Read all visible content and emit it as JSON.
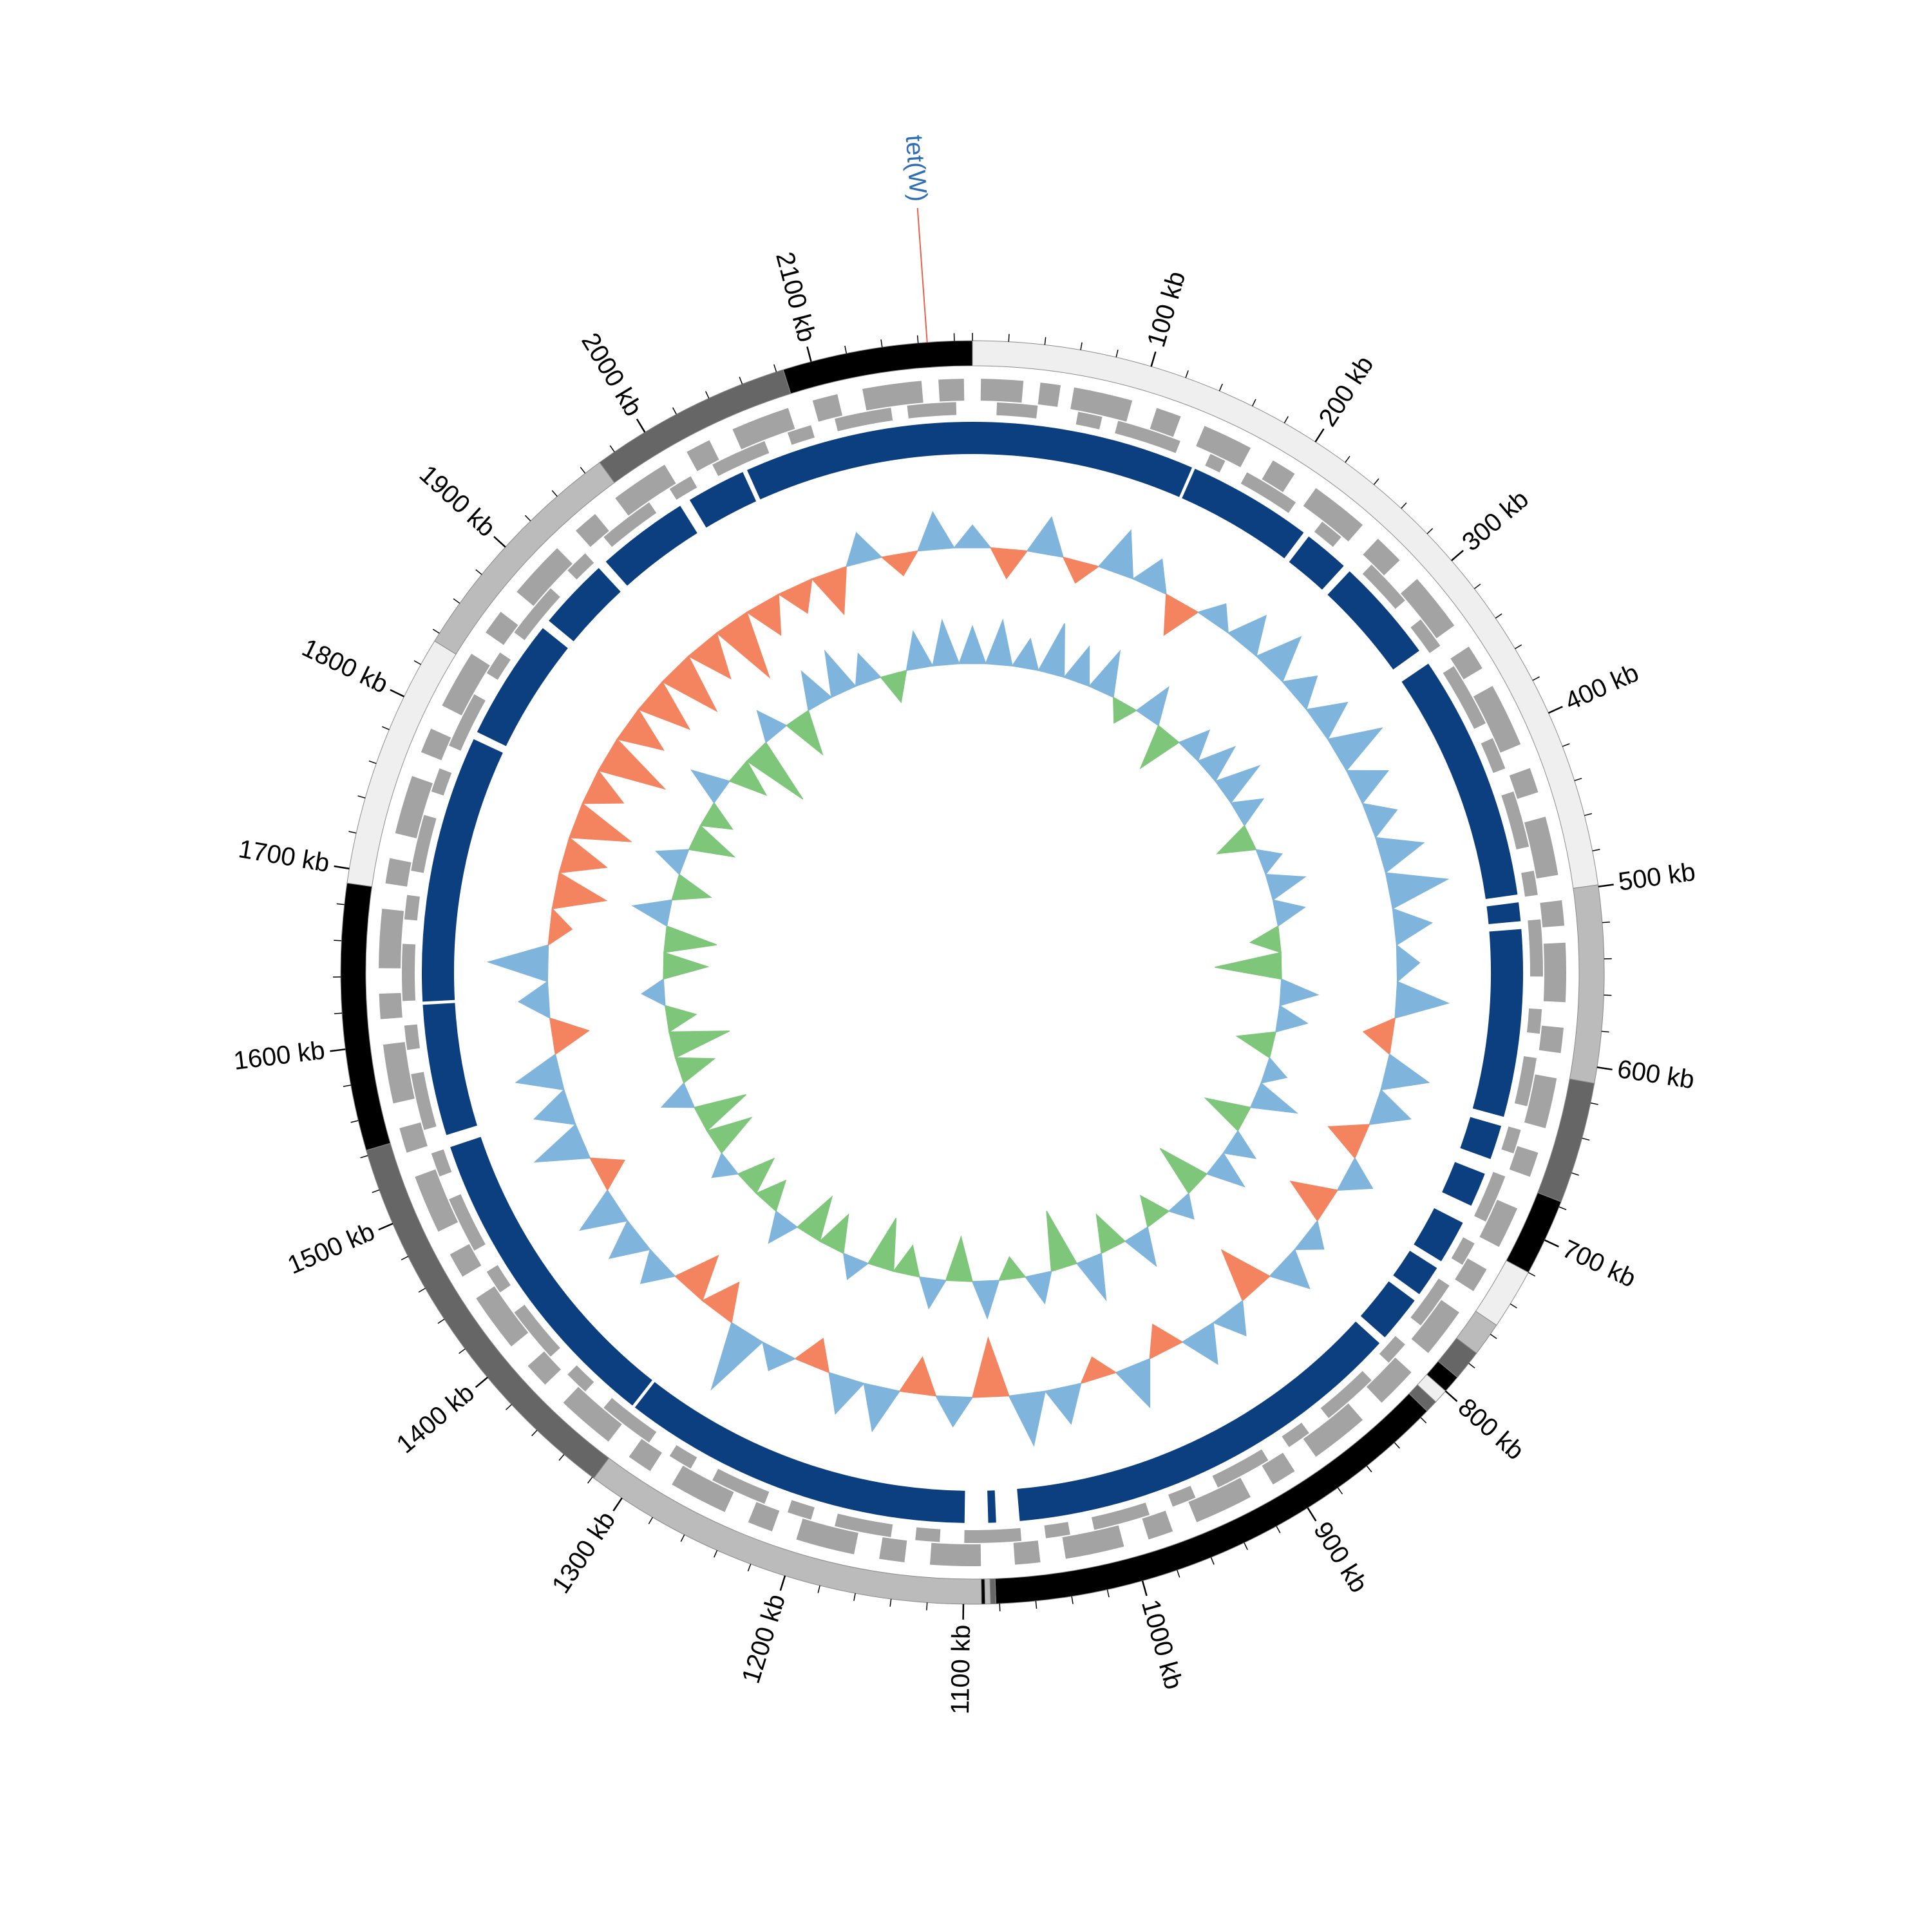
{
  "chart_data": {
    "type": "circular-genome",
    "xlim": [
      0,
      2190
    ],
    "xticks": [
      {
        "value": 100,
        "label": "100 kb"
      },
      {
        "value": 200,
        "label": "200 kb"
      },
      {
        "value": 300,
        "label": "300 kb"
      },
      {
        "value": 400,
        "label": "400 kb"
      },
      {
        "value": 500,
        "label": "500 kb"
      },
      {
        "value": 600,
        "label": "600 kb"
      },
      {
        "value": 700,
        "label": "700 kb"
      },
      {
        "value": 800,
        "label": "800 kb"
      },
      {
        "value": 900,
        "label": "900 kb"
      },
      {
        "value": 1000,
        "label": "1000 kb"
      },
      {
        "value": 1100,
        "label": "1100 kb"
      },
      {
        "value": 1200,
        "label": "1200 kb"
      },
      {
        "value": 1300,
        "label": "1300 kb"
      },
      {
        "value": 1400,
        "label": "1400 kb"
      },
      {
        "value": 1500,
        "label": "1500 kb"
      },
      {
        "value": 1600,
        "label": "1600 kb"
      },
      {
        "value": 1700,
        "label": "1700 kb"
      },
      {
        "value": 1800,
        "label": "1800 kb"
      },
      {
        "value": 1900,
        "label": "1900 kb"
      },
      {
        "value": 2000,
        "label": "2000 kb"
      },
      {
        "value": 2100,
        "label": "2100 kb"
      }
    ],
    "minor_ticks": [
      0,
      20,
      40,
      60,
      80,
      100,
      120,
      140,
      160,
      180,
      200,
      220,
      240,
      260,
      280,
      300,
      320,
      340,
      360,
      380,
      400,
      420,
      440,
      460,
      480,
      500,
      520,
      540,
      560,
      580,
      600,
      620,
      640,
      660,
      680,
      700,
      720,
      740,
      760,
      780,
      800,
      820,
      840,
      860,
      880,
      900,
      920,
      940,
      960,
      980,
      1000,
      1020,
      1040,
      1060,
      1080,
      1100,
      1120,
      1140,
      1160,
      1180,
      1200,
      1220,
      1240,
      1260,
      1280,
      1300,
      1320,
      1340,
      1360,
      1380,
      1400,
      1420,
      1440,
      1460,
      1480,
      1500,
      1520,
      1540,
      1560,
      1580,
      1600,
      1620,
      1640,
      1660,
      1680,
      1700,
      1720,
      1740,
      1760,
      1780,
      1800,
      1820,
      1840,
      1860,
      1880,
      1900,
      1920,
      1940,
      1960,
      1980,
      2000,
      2020,
      2040,
      2060,
      2080,
      2100,
      2120,
      2140,
      2160,
      2180
    ],
    "contigs": [
      {
        "start": 0,
        "end": 499,
        "color": "#efefef"
      },
      {
        "start": 499,
        "end": 609,
        "color": "#bbbbbb"
      },
      {
        "start": 609,
        "end": 677,
        "color": "#666666"
      },
      {
        "start": 677,
        "end": 720,
        "color": "#000000"
      },
      {
        "start": 720,
        "end": 754,
        "color": "#efefef"
      },
      {
        "start": 754,
        "end": 773,
        "color": "#bbbbbb"
      },
      {
        "start": 773,
        "end": 790,
        "color": "#666666"
      },
      {
        "start": 790,
        "end": 800,
        "color": "#000000"
      },
      {
        "start": 800,
        "end": 808,
        "color": "#efefef"
      },
      {
        "start": 808,
        "end": 815,
        "color": "#666666"
      },
      {
        "start": 815,
        "end": 1082,
        "color": "#000000"
      },
      {
        "start": 1082,
        "end": 1085,
        "color": "#666666"
      },
      {
        "start": 1085,
        "end": 1088,
        "color": "#bbbbbb"
      },
      {
        "start": 1088,
        "end": 1090,
        "color": "#000000"
      },
      {
        "start": 1090,
        "end": 1319,
        "color": "#bbbbbb"
      },
      {
        "start": 1319,
        "end": 1543,
        "color": "#666666"
      },
      {
        "start": 1543,
        "end": 1692,
        "color": "#000000"
      },
      {
        "start": 1692,
        "end": 1835,
        "color": "#efefef"
      },
      {
        "start": 1835,
        "end": 1970,
        "color": "#bbbbbb"
      },
      {
        "start": 1970,
        "end": 2084,
        "color": "#666666"
      },
      {
        "start": 2084,
        "end": 2190,
        "color": "#000000"
      }
    ],
    "genes": {
      "color": "#a3a3a3",
      "forward": [
        [
          5,
          30
        ],
        [
          40,
          52
        ],
        [
          60,
          95
        ],
        [
          110,
          125
        ],
        [
          140,
          170
        ],
        [
          185,
          200
        ],
        [
          215,
          250
        ],
        [
          262,
          280
        ],
        [
          295,
          330
        ],
        [
          345,
          360
        ],
        [
          372,
          410
        ],
        [
          425,
          440
        ],
        [
          455,
          490
        ],
        [
          505,
          520
        ],
        [
          530,
          565
        ],
        [
          580,
          595
        ],
        [
          610,
          640
        ],
        [
          655,
          670
        ],
        [
          690,
          715
        ],
        [
          730,
          745
        ],
        [
          760,
          790
        ],
        [
          805,
          830
        ],
        [
          845,
          880
        ],
        [
          895,
          910
        ],
        [
          925,
          960
        ],
        [
          975,
          990
        ],
        [
          1005,
          1040
        ],
        [
          1055,
          1070
        ],
        [
          1090,
          1120
        ],
        [
          1135,
          1150
        ],
        [
          1165,
          1200
        ],
        [
          1215,
          1230
        ],
        [
          1245,
          1280
        ],
        [
          1295,
          1310
        ],
        [
          1325,
          1360
        ],
        [
          1375,
          1390
        ],
        [
          1405,
          1440
        ],
        [
          1455,
          1470
        ],
        [
          1485,
          1520
        ],
        [
          1535,
          1550
        ],
        [
          1565,
          1600
        ],
        [
          1615,
          1630
        ],
        [
          1645,
          1680
        ],
        [
          1695,
          1710
        ],
        [
          1725,
          1760
        ],
        [
          1775,
          1790
        ],
        [
          1805,
          1840
        ],
        [
          1855,
          1870
        ],
        [
          1885,
          1920
        ],
        [
          1935,
          1950
        ],
        [
          1965,
          2000
        ],
        [
          2015,
          2030
        ],
        [
          2045,
          2080
        ],
        [
          2095,
          2110
        ],
        [
          2125,
          2160
        ],
        [
          2170,
          2185
        ]
      ],
      "reverse": [
        [
          15,
          40
        ],
        [
          65,
          80
        ],
        [
          90,
          130
        ],
        [
          150,
          160
        ],
        [
          175,
          210
        ],
        [
          230,
          245
        ],
        [
          270,
          300
        ],
        [
          315,
          335
        ],
        [
          350,
          390
        ],
        [
          400,
          420
        ],
        [
          435,
          470
        ],
        [
          485,
          500
        ],
        [
          515,
          550
        ],
        [
          570,
          585
        ],
        [
          600,
          630
        ],
        [
          645,
          660
        ],
        [
          675,
          705
        ],
        [
          720,
          735
        ],
        [
          750,
          780
        ],
        [
          795,
          810
        ],
        [
          825,
          860
        ],
        [
          875,
          890
        ],
        [
          905,
          940
        ],
        [
          955,
          970
        ],
        [
          985,
          1020
        ],
        [
          1035,
          1050
        ],
        [
          1065,
          1100
        ],
        [
          1115,
          1130
        ],
        [
          1145,
          1180
        ],
        [
          1195,
          1210
        ],
        [
          1225,
          1260
        ],
        [
          1275,
          1290
        ],
        [
          1305,
          1340
        ],
        [
          1355,
          1370
        ],
        [
          1385,
          1420
        ],
        [
          1435,
          1450
        ],
        [
          1465,
          1500
        ],
        [
          1515,
          1530
        ],
        [
          1545,
          1580
        ],
        [
          1595,
          1610
        ],
        [
          1625,
          1660
        ],
        [
          1675,
          1690
        ],
        [
          1705,
          1740
        ],
        [
          1755,
          1770
        ],
        [
          1785,
          1820
        ],
        [
          1835,
          1850
        ],
        [
          1865,
          1900
        ],
        [
          1915,
          1930
        ],
        [
          1945,
          1980
        ],
        [
          1995,
          2010
        ],
        [
          2025,
          2060
        ],
        [
          2075,
          2090
        ],
        [
          2105,
          2140
        ],
        [
          2150,
          2180
        ]
      ]
    },
    "blast": {
      "color": "#0b3f7f",
      "hits": [
        [
          0,
          143
        ],
        [
          145,
          225
        ],
        [
          229,
          258
        ],
        [
          263,
          330
        ],
        [
          340,
          498
        ],
        [
          503,
          515
        ],
        [
          520,
          640
        ],
        [
          646,
          668
        ],
        [
          678,
          700
        ],
        [
          712,
          740
        ],
        [
          745,
          765
        ],
        [
          770,
          800
        ],
        [
          805,
          1065
        ],
        [
          1080,
          1085
        ],
        [
          1100,
          1325
        ],
        [
          1327,
          1530
        ],
        [
          1538,
          1622
        ],
        [
          1624,
          1795
        ],
        [
          1800,
          1878
        ],
        [
          1884,
          1930
        ],
        [
          1936,
          1995
        ],
        [
          2002,
          2040
        ],
        [
          2043,
          2190
        ]
      ]
    },
    "gc_content": {
      "ylim": [
        -1,
        1
      ],
      "positive_color": "#7fb5dc",
      "negative_color": "#f4845f",
      "x": [
        0,
        30,
        60,
        90,
        120,
        150,
        180,
        210,
        240,
        270,
        300,
        330,
        360,
        390,
        420,
        450,
        480,
        510,
        540,
        570,
        600,
        630,
        660,
        690,
        720,
        750,
        780,
        810,
        840,
        870,
        900,
        930,
        960,
        990,
        1020,
        1050,
        1080,
        1110,
        1140,
        1170,
        1200,
        1230,
        1260,
        1290,
        1320,
        1350,
        1380,
        1410,
        1440,
        1470,
        1500,
        1530,
        1560,
        1590,
        1620,
        1650,
        1680,
        1710,
        1740,
        1770,
        1800,
        1830,
        1860,
        1890,
        1920,
        1950,
        1980,
        2010,
        2040,
        2070,
        2100,
        2130,
        2160
      ],
      "values": [
        0.3,
        -0.4,
        0.5,
        -0.3,
        0.6,
        0.4,
        -0.5,
        0.3,
        0.5,
        0.6,
        0.4,
        0.5,
        0.7,
        0.5,
        0.4,
        0.6,
        0.8,
        0.5,
        0.3,
        0.7,
        -0.4,
        0.6,
        0.5,
        -0.5,
        0.4,
        -0.6,
        0.3,
        0.5,
        -0.7,
        0.4,
        0.5,
        -0.4,
        0.6,
        -0.3,
        0.5,
        0.7,
        -0.8,
        0.4,
        -0.5,
        0.6,
        0.5,
        -0.4,
        0.3,
        0.9,
        -0.5,
        -0.6,
        0.4,
        0.5,
        0.6,
        -0.4,
        0.7,
        0.5,
        0.6,
        -0.5,
        0.4,
        0.8,
        -0.3,
        -0.7,
        -0.6,
        -0.8,
        -0.5,
        -0.9,
        -0.6,
        -0.7,
        -0.8,
        -0.6,
        -0.9,
        -0.5,
        -0.4,
        -0.6,
        0.4,
        -0.3,
        0.5
      ]
    },
    "gc_skew": {
      "ylim": [
        -1,
        1
      ],
      "positive_color": "#7fb5dc",
      "negative_color": "#7dc67a",
      "x": [
        0,
        30,
        60,
        90,
        120,
        150,
        180,
        210,
        240,
        270,
        300,
        330,
        360,
        390,
        420,
        450,
        480,
        510,
        540,
        570,
        600,
        630,
        660,
        690,
        720,
        750,
        780,
        810,
        840,
        870,
        900,
        930,
        960,
        990,
        1020,
        1050,
        1080,
        1110,
        1140,
        1170,
        1200,
        1230,
        1260,
        1290,
        1320,
        1350,
        1380,
        1410,
        1440,
        1470,
        1500,
        1530,
        1560,
        1590,
        1620,
        1650,
        1680,
        1710,
        1740,
        1770,
        1800,
        1830,
        1860,
        1890,
        1920,
        1950,
        1980,
        2010,
        2040,
        2070,
        2100,
        2130,
        2160
      ],
      "values": [
        0.5,
        0.6,
        0.4,
        0.7,
        0.5,
        0.6,
        -0.3,
        0.5,
        -0.6,
        0.4,
        0.5,
        0.6,
        0.4,
        -0.5,
        0.3,
        0.5,
        0.4,
        -0.4,
        -0.9,
        0.5,
        0.4,
        -0.5,
        0.3,
        0.6,
        -0.6,
        0.4,
        0.5,
        -0.7,
        0.3,
        -0.4,
        0.5,
        -0.5,
        0.6,
        -0.8,
        0.4,
        -0.3,
        0.5,
        -0.6,
        0.4,
        -0.4,
        -0.7,
        0.3,
        -0.5,
        -0.6,
        0.4,
        -0.4,
        -0.5,
        0.3,
        -0.6,
        -0.7,
        0.4,
        -0.5,
        -0.8,
        -0.4,
        0.3,
        -0.6,
        -0.7,
        0.5,
        -0.5,
        0.4,
        -0.6,
        -0.4,
        0.5,
        -0.5,
        -0.9,
        0.4,
        -0.6,
        0.5,
        0.6,
        0.4,
        -0.4,
        0.5,
        0.6
      ]
    },
    "annotations": [
      {
        "text": "tet(W)",
        "position": 2165,
        "color": "#2f6db5",
        "line_color": "#e8604c"
      }
    ]
  }
}
